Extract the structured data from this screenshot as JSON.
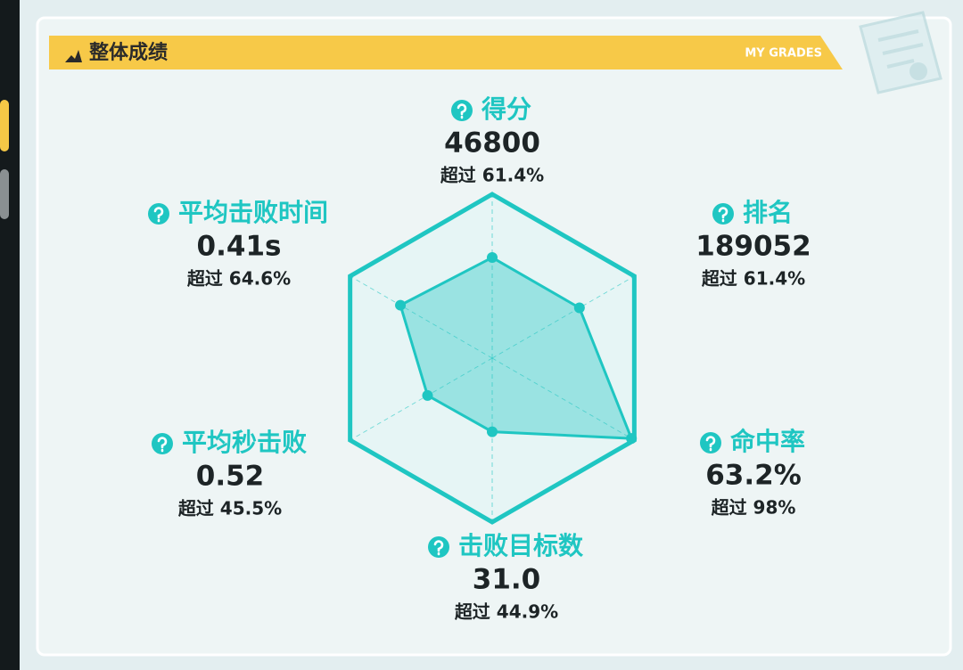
{
  "panel": {
    "title": "整体成绩",
    "subtitle": "MY GRADES"
  },
  "chart_data": {
    "type": "radar",
    "categories": [
      "得分",
      "排名",
      "命中率",
      "击败目标数",
      "平均秒击败",
      "平均击败时间"
    ],
    "stats": [
      "46800",
      "189052",
      "63.2%",
      "31.0",
      "0.52",
      "0.41s"
    ],
    "values": [
      61.4,
      61.4,
      98,
      44.9,
      45.5,
      64.6
    ],
    "value_labels": [
      "超过 61.4%",
      "超过 61.4%",
      "超过 98%",
      "超过 44.9%",
      "超过 45.5%",
      "超过 64.6%"
    ],
    "rlim": [
      0,
      100
    ],
    "rticks": [
      25,
      50,
      75,
      100
    ],
    "color": "#1fc6c2"
  }
}
